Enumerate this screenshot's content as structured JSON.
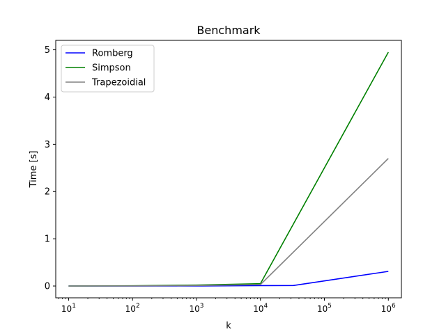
{
  "chart_data": {
    "type": "line",
    "title": "Benchmark",
    "xlabel": "k",
    "ylabel": "Time [s]",
    "xscale": "log",
    "xlim": [
      6.3,
      1600000
    ],
    "ylim": [
      -0.25,
      5.2
    ],
    "x_ticks": [
      10,
      100,
      1000,
      10000,
      100000,
      1000000
    ],
    "x_tick_labels": [
      {
        "base": "10",
        "exp": "1"
      },
      {
        "base": "10",
        "exp": "2"
      },
      {
        "base": "10",
        "exp": "3"
      },
      {
        "base": "10",
        "exp": "4"
      },
      {
        "base": "10",
        "exp": "5"
      },
      {
        "base": "10",
        "exp": "6"
      }
    ],
    "y_ticks": [
      0,
      1,
      2,
      3,
      4,
      5
    ],
    "y_tick_labels": [
      "0",
      "1",
      "2",
      "3",
      "4",
      "5"
    ],
    "grid": false,
    "legend_position": "top-left",
    "series": [
      {
        "name": "Romberg",
        "color": "#0000ff",
        "x": [
          10,
          31,
          100,
          1000,
          10000,
          32768,
          1000000
        ],
        "y": [
          0.0,
          0.0,
          0.0,
          0.002,
          0.008,
          0.01,
          0.31
        ]
      },
      {
        "name": "Simpson",
        "color": "#008000",
        "x": [
          10,
          100,
          1000,
          10000,
          1000000
        ],
        "y": [
          0.0,
          0.005,
          0.02,
          0.05,
          4.95
        ]
      },
      {
        "name": "Trapezoidial",
        "color": "#808080",
        "x": [
          10,
          100,
          1000,
          10000,
          1000000
        ],
        "y": [
          0.0,
          0.002,
          0.01,
          0.03,
          2.7
        ]
      }
    ]
  }
}
